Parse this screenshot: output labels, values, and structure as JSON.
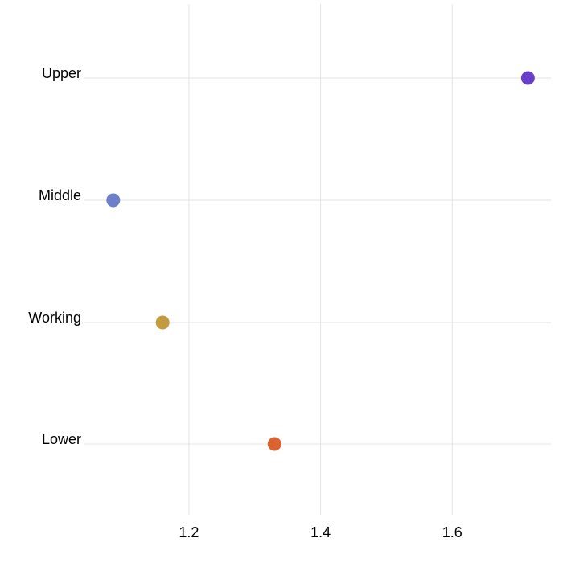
{
  "chart_data": {
    "type": "scatter",
    "title": "",
    "xlabel": "",
    "ylabel": "",
    "xlim": [
      1.04,
      1.75
    ],
    "x_ticks": [
      1.2,
      1.4,
      1.6
    ],
    "x_tick_labels": [
      "1.2",
      "1.4",
      "1.6"
    ],
    "categories": [
      "Upper",
      "Middle",
      "Working",
      "Lower"
    ],
    "points": [
      {
        "category": "Upper",
        "x": 1.715,
        "color": "#6a3fc8"
      },
      {
        "category": "Middle",
        "x": 1.085,
        "color": "#6b7fcb"
      },
      {
        "category": "Working",
        "x": 1.16,
        "color": "#c39a3e"
      },
      {
        "category": "Lower",
        "x": 1.33,
        "color": "#dc6330"
      }
    ],
    "grid": true,
    "legend": "none"
  }
}
